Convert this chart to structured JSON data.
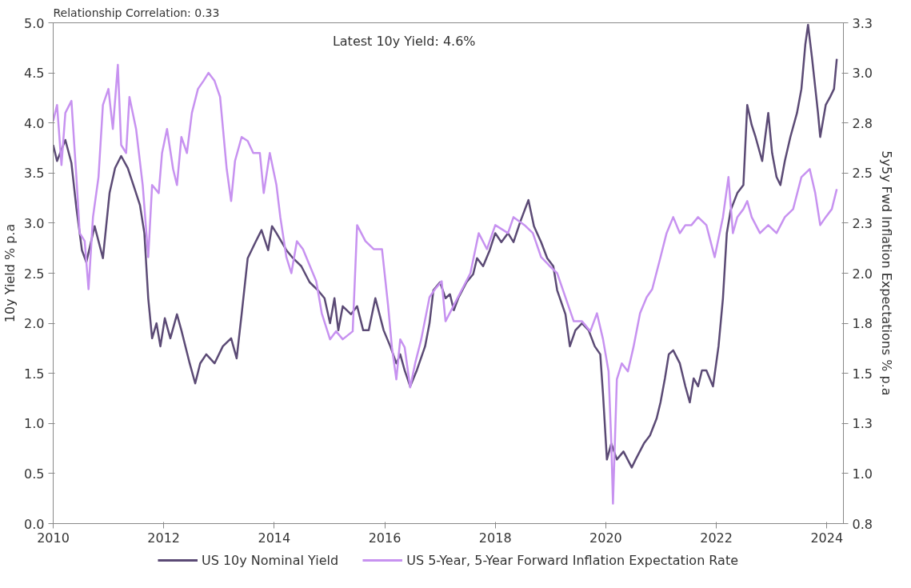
{
  "chart_data": {
    "type": "line",
    "title": "Relationship Correlation: 0.33",
    "annotations": [
      "Latest 10y Yield: 4.6%"
    ],
    "ylabel": "10y Yield % p.a",
    "y2label": "5y5y Fwd Inflation Expectations % p.a",
    "xlim": [
      2010,
      2024.3
    ],
    "xticks": [
      2010,
      2012,
      2014,
      2016,
      2018,
      2020,
      2022,
      2024
    ],
    "ylim": [
      0,
      5
    ],
    "yticks": [
      {
        "value": 0,
        "label": "0.0"
      },
      0.5,
      {
        "value": 1,
        "label": "1.0"
      },
      1.5,
      {
        "value": 2,
        "label": "2.0"
      },
      2.5,
      {
        "value": 3,
        "label": "3.0"
      },
      3.5,
      {
        "value": 4,
        "label": "4.0"
      },
      4.5,
      {
        "value": 5,
        "label": "5.0"
      }
    ],
    "y2lim": [
      0.75,
      3.25
    ],
    "y2ticks": [
      {
        "value": 0.75,
        "label": "0.8"
      },
      {
        "value": 1,
        "label": "1.0"
      },
      {
        "value": 1.25,
        "label": "1.3"
      },
      {
        "value": 1.5,
        "label": "1.5"
      },
      {
        "value": 1.75,
        "label": "1.8"
      },
      {
        "value": 2,
        "label": "2.0"
      },
      {
        "value": 2.25,
        "label": "2.3"
      },
      {
        "value": 2.5,
        "label": "2.5"
      },
      {
        "value": 2.75,
        "label": "2.8"
      },
      {
        "value": 3,
        "label": "3.0"
      },
      {
        "value": 3.25,
        "label": "3.3"
      }
    ],
    "grid": false,
    "legend": "bottom",
    "line_style": "solid",
    "series": [
      {
        "name": "US 10y Nominal Yield",
        "color": "#5b4a75",
        "x": [
          2010.0,
          2010.07,
          2010.22,
          2010.33,
          2010.42,
          2010.52,
          2010.6,
          2010.75,
          2010.9,
          2011.02,
          2011.12,
          2011.23,
          2011.35,
          2011.47,
          2011.57,
          2011.65,
          2011.72,
          2011.79,
          2011.87,
          2011.94,
          2012.02,
          2012.12,
          2012.24,
          2012.32,
          2012.47,
          2012.57,
          2012.66,
          2012.77,
          2012.92,
          2013.07,
          2013.22,
          2013.32,
          2013.41,
          2013.52,
          2013.66,
          2013.77,
          2013.89,
          2013.96,
          2014.04,
          2014.22,
          2014.34,
          2014.49,
          2014.64,
          2014.79,
          2014.91,
          2015.01,
          2015.09,
          2015.16,
          2015.24,
          2015.39,
          2015.5,
          2015.61,
          2015.71,
          2015.83,
          2015.98,
          2016.1,
          2016.21,
          2016.28,
          2016.36,
          2016.46,
          2016.58,
          2016.73,
          2016.81,
          2016.88,
          2017.0,
          2017.1,
          2017.18,
          2017.25,
          2017.33,
          2017.48,
          2017.6,
          2017.67,
          2017.78,
          2017.9,
          2018.0,
          2018.11,
          2018.23,
          2018.33,
          2018.45,
          2018.6,
          2018.7,
          2018.83,
          2018.94,
          2019.05,
          2019.12,
          2019.27,
          2019.35,
          2019.45,
          2019.57,
          2019.69,
          2019.8,
          2019.9,
          2019.95,
          2020.02,
          2020.1,
          2020.2,
          2020.32,
          2020.47,
          2020.54,
          2020.69,
          2020.8,
          2020.92,
          2020.99,
          2021.07,
          2021.14,
          2021.22,
          2021.34,
          2021.44,
          2021.52,
          2021.59,
          2021.67,
          2021.74,
          2021.82,
          2021.94,
          2022.04,
          2022.12,
          2022.19,
          2022.26,
          2022.38,
          2022.49,
          2022.56,
          2022.64,
          2022.71,
          2022.83,
          2022.94,
          2023.01,
          2023.09,
          2023.16,
          2023.24,
          2023.34,
          2023.46,
          2023.54,
          2023.61,
          2023.66,
          2023.73,
          2023.84,
          2023.88,
          2023.98,
          2024.06,
          2024.13,
          2024.18
        ],
        "values": [
          3.78,
          3.62,
          3.83,
          3.6,
          3.15,
          2.73,
          2.61,
          2.97,
          2.65,
          3.3,
          3.55,
          3.67,
          3.55,
          3.35,
          3.18,
          2.9,
          2.25,
          1.85,
          2.0,
          1.77,
          2.05,
          1.85,
          2.09,
          1.93,
          1.6,
          1.4,
          1.6,
          1.69,
          1.6,
          1.77,
          1.85,
          1.65,
          2.09,
          2.65,
          2.81,
          2.93,
          2.73,
          2.97,
          2.9,
          2.73,
          2.65,
          2.57,
          2.41,
          2.33,
          2.25,
          2.0,
          2.25,
          1.93,
          2.17,
          2.09,
          2.17,
          1.93,
          1.93,
          2.25,
          1.93,
          1.77,
          1.6,
          1.69,
          1.53,
          1.37,
          1.53,
          1.77,
          2.0,
          2.33,
          2.41,
          2.25,
          2.29,
          2.13,
          2.25,
          2.41,
          2.49,
          2.65,
          2.57,
          2.73,
          2.9,
          2.81,
          2.9,
          2.81,
          3.01,
          3.23,
          2.97,
          2.81,
          2.65,
          2.57,
          2.33,
          2.09,
          1.77,
          1.93,
          2.0,
          1.93,
          1.77,
          1.69,
          1.29,
          0.64,
          0.8,
          0.64,
          0.72,
          0.56,
          0.64,
          0.8,
          0.88,
          1.05,
          1.21,
          1.45,
          1.69,
          1.73,
          1.6,
          1.37,
          1.21,
          1.45,
          1.37,
          1.53,
          1.53,
          1.37,
          1.77,
          2.25,
          2.9,
          3.13,
          3.3,
          3.38,
          4.18,
          3.98,
          3.86,
          3.62,
          4.1,
          3.7,
          3.46,
          3.38,
          3.62,
          3.86,
          4.1,
          4.34,
          4.78,
          4.98,
          4.66,
          4.1,
          3.86,
          4.18,
          4.26,
          4.34,
          4.64
        ]
      },
      {
        "name": "US 5-Year, 5-Year Forward Inflation Expectation Rate",
        "color": "#c792f0",
        "axis": "y2",
        "x": [
          2010.0,
          2010.07,
          2010.15,
          2010.22,
          2010.33,
          2010.42,
          2010.48,
          2010.57,
          2010.64,
          2010.72,
          2010.82,
          2010.9,
          2011.0,
          2011.08,
          2011.17,
          2011.23,
          2011.32,
          2011.38,
          2011.5,
          2011.62,
          2011.72,
          2011.79,
          2011.91,
          2011.97,
          2012.06,
          2012.17,
          2012.24,
          2012.32,
          2012.42,
          2012.51,
          2012.62,
          2012.72,
          2012.81,
          2012.92,
          2013.02,
          2013.14,
          2013.22,
          2013.29,
          2013.41,
          2013.52,
          2013.62,
          2013.74,
          2013.81,
          2013.92,
          2014.04,
          2014.11,
          2014.22,
          2014.31,
          2014.41,
          2014.52,
          2014.64,
          2014.76,
          2014.86,
          2015.01,
          2015.12,
          2015.24,
          2015.42,
          2015.5,
          2015.65,
          2015.8,
          2015.95,
          2016.06,
          2016.13,
          2016.21,
          2016.28,
          2016.36,
          2016.46,
          2016.55,
          2016.66,
          2016.81,
          2016.91,
          2017.03,
          2017.1,
          2017.25,
          2017.4,
          2017.55,
          2017.7,
          2017.85,
          2018.0,
          2018.23,
          2018.33,
          2018.53,
          2018.68,
          2018.83,
          2018.97,
          2019.12,
          2019.27,
          2019.42,
          2019.57,
          2019.72,
          2019.84,
          2019.95,
          2020.05,
          2020.1,
          2020.13,
          2020.2,
          2020.29,
          2020.4,
          2020.5,
          2020.62,
          2020.74,
          2020.84,
          2020.99,
          2021.1,
          2021.22,
          2021.34,
          2021.44,
          2021.55,
          2021.67,
          2021.82,
          2021.97,
          2022.12,
          2022.22,
          2022.3,
          2022.38,
          2022.49,
          2022.56,
          2022.64,
          2022.79,
          2022.94,
          2023.09,
          2023.24,
          2023.39,
          2023.54,
          2023.69,
          2023.79,
          2023.88,
          2023.98,
          2024.09,
          2024.18
        ],
        "values": [
          2.76,
          2.84,
          2.54,
          2.8,
          2.86,
          2.48,
          2.2,
          2.16,
          1.92,
          2.28,
          2.48,
          2.84,
          2.92,
          2.72,
          3.04,
          2.64,
          2.6,
          2.88,
          2.72,
          2.44,
          2.08,
          2.44,
          2.4,
          2.6,
          2.72,
          2.52,
          2.44,
          2.68,
          2.6,
          2.8,
          2.92,
          2.96,
          3.0,
          2.96,
          2.88,
          2.52,
          2.36,
          2.56,
          2.68,
          2.66,
          2.6,
          2.6,
          2.4,
          2.6,
          2.44,
          2.28,
          2.08,
          2.0,
          2.16,
          2.12,
          2.04,
          1.96,
          1.8,
          1.67,
          1.71,
          1.67,
          1.71,
          2.24,
          2.16,
          2.12,
          2.12,
          1.84,
          1.63,
          1.47,
          1.67,
          1.63,
          1.43,
          1.55,
          1.67,
          1.88,
          1.92,
          1.96,
          1.76,
          1.84,
          1.92,
          2.0,
          2.2,
          2.12,
          2.24,
          2.2,
          2.28,
          2.24,
          2.2,
          2.08,
          2.04,
          2.0,
          1.88,
          1.76,
          1.76,
          1.71,
          1.8,
          1.67,
          1.51,
          1.15,
          0.85,
          1.47,
          1.55,
          1.51,
          1.63,
          1.8,
          1.88,
          1.92,
          2.08,
          2.2,
          2.28,
          2.2,
          2.24,
          2.24,
          2.28,
          2.24,
          2.08,
          2.28,
          2.48,
          2.2,
          2.28,
          2.32,
          2.36,
          2.28,
          2.2,
          2.24,
          2.2,
          2.28,
          2.32,
          2.48,
          2.52,
          2.4,
          2.24,
          2.28,
          2.32,
          2.42
        ]
      }
    ]
  }
}
